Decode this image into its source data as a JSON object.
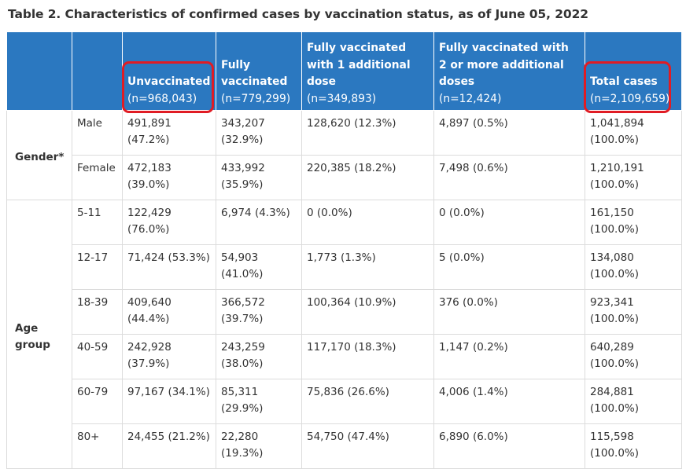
{
  "caption": "Table 2. Characteristics of confirmed cases by vaccination status, as of June 05, 2022",
  "columns": [
    {
      "label": "Unvaccinated",
      "n": "(n=968,043)"
    },
    {
      "label": "Fully vaccinated",
      "n": "(n=779,299)"
    },
    {
      "label": "Fully vaccinated with 1 additional dose",
      "n": "(n=349,893)"
    },
    {
      "label": "Fully vaccinated with 2 or more additional doses",
      "n": "(n=12,424)"
    },
    {
      "label": "Total cases",
      "n": "(n=2,109,659)"
    }
  ],
  "groups": {
    "gender": "Gender*",
    "age": "Age group"
  },
  "rows": [
    {
      "label": "Male",
      "cells": [
        [
          "491,891",
          "(47.2%)"
        ],
        [
          "343,207",
          "(32.9%)"
        ],
        [
          "128,620 (12.3%)",
          ""
        ],
        [
          "4,897 (0.5%)",
          ""
        ],
        [
          "1,041,894",
          "(100.0%)"
        ]
      ]
    },
    {
      "label": "Female",
      "cells": [
        [
          "472,183",
          "(39.0%)"
        ],
        [
          "433,992",
          "(35.9%)"
        ],
        [
          "220,385 (18.2%)",
          ""
        ],
        [
          "7,498 (0.6%)",
          ""
        ],
        [
          "1,210,191",
          "(100.0%)"
        ]
      ]
    },
    {
      "label": "5-11",
      "cells": [
        [
          "122,429",
          "(76.0%)"
        ],
        [
          "6,974 (4.3%)",
          ""
        ],
        [
          "0 (0.0%)",
          ""
        ],
        [
          "0 (0.0%)",
          ""
        ],
        [
          "161,150",
          "(100.0%)"
        ]
      ]
    },
    {
      "label": "12-17",
      "cells": [
        [
          "71,424 (53.3%)",
          ""
        ],
        [
          "54,903",
          "(41.0%)"
        ],
        [
          "1,773 (1.3%)",
          ""
        ],
        [
          "5 (0.0%)",
          ""
        ],
        [
          "134,080",
          "(100.0%)"
        ]
      ]
    },
    {
      "label": "18-39",
      "cells": [
        [
          "409,640",
          "(44.4%)"
        ],
        [
          "366,572",
          "(39.7%)"
        ],
        [
          "100,364 (10.9%)",
          ""
        ],
        [
          "376 (0.0%)",
          ""
        ],
        [
          "923,341",
          "(100.0%)"
        ]
      ]
    },
    {
      "label": "40-59",
      "cells": [
        [
          "242,928",
          "(37.9%)"
        ],
        [
          "243,259",
          "(38.0%)"
        ],
        [
          "117,170 (18.3%)",
          ""
        ],
        [
          "1,147 (0.2%)",
          ""
        ],
        [
          "640,289",
          "(100.0%)"
        ]
      ]
    },
    {
      "label": "60-79",
      "cells": [
        [
          "97,167 (34.1%)",
          ""
        ],
        [
          "85,311",
          "(29.9%)"
        ],
        [
          "75,836 (26.6%)",
          ""
        ],
        [
          "4,006 (1.4%)",
          ""
        ],
        [
          "284,881",
          "(100.0%)"
        ]
      ]
    },
    {
      "label": "80+",
      "cells": [
        [
          "24,455 (21.2%)",
          ""
        ],
        [
          "22,280",
          "(19.3%)"
        ],
        [
          "54,750 (47.4%)",
          ""
        ],
        [
          "6,890 (6.0%)",
          ""
        ],
        [
          "115,598",
          "(100.0%)"
        ]
      ]
    }
  ],
  "colors": {
    "header_bg": "#2b78c0",
    "highlight": "#e01c24",
    "border": "#dcdcdc"
  }
}
